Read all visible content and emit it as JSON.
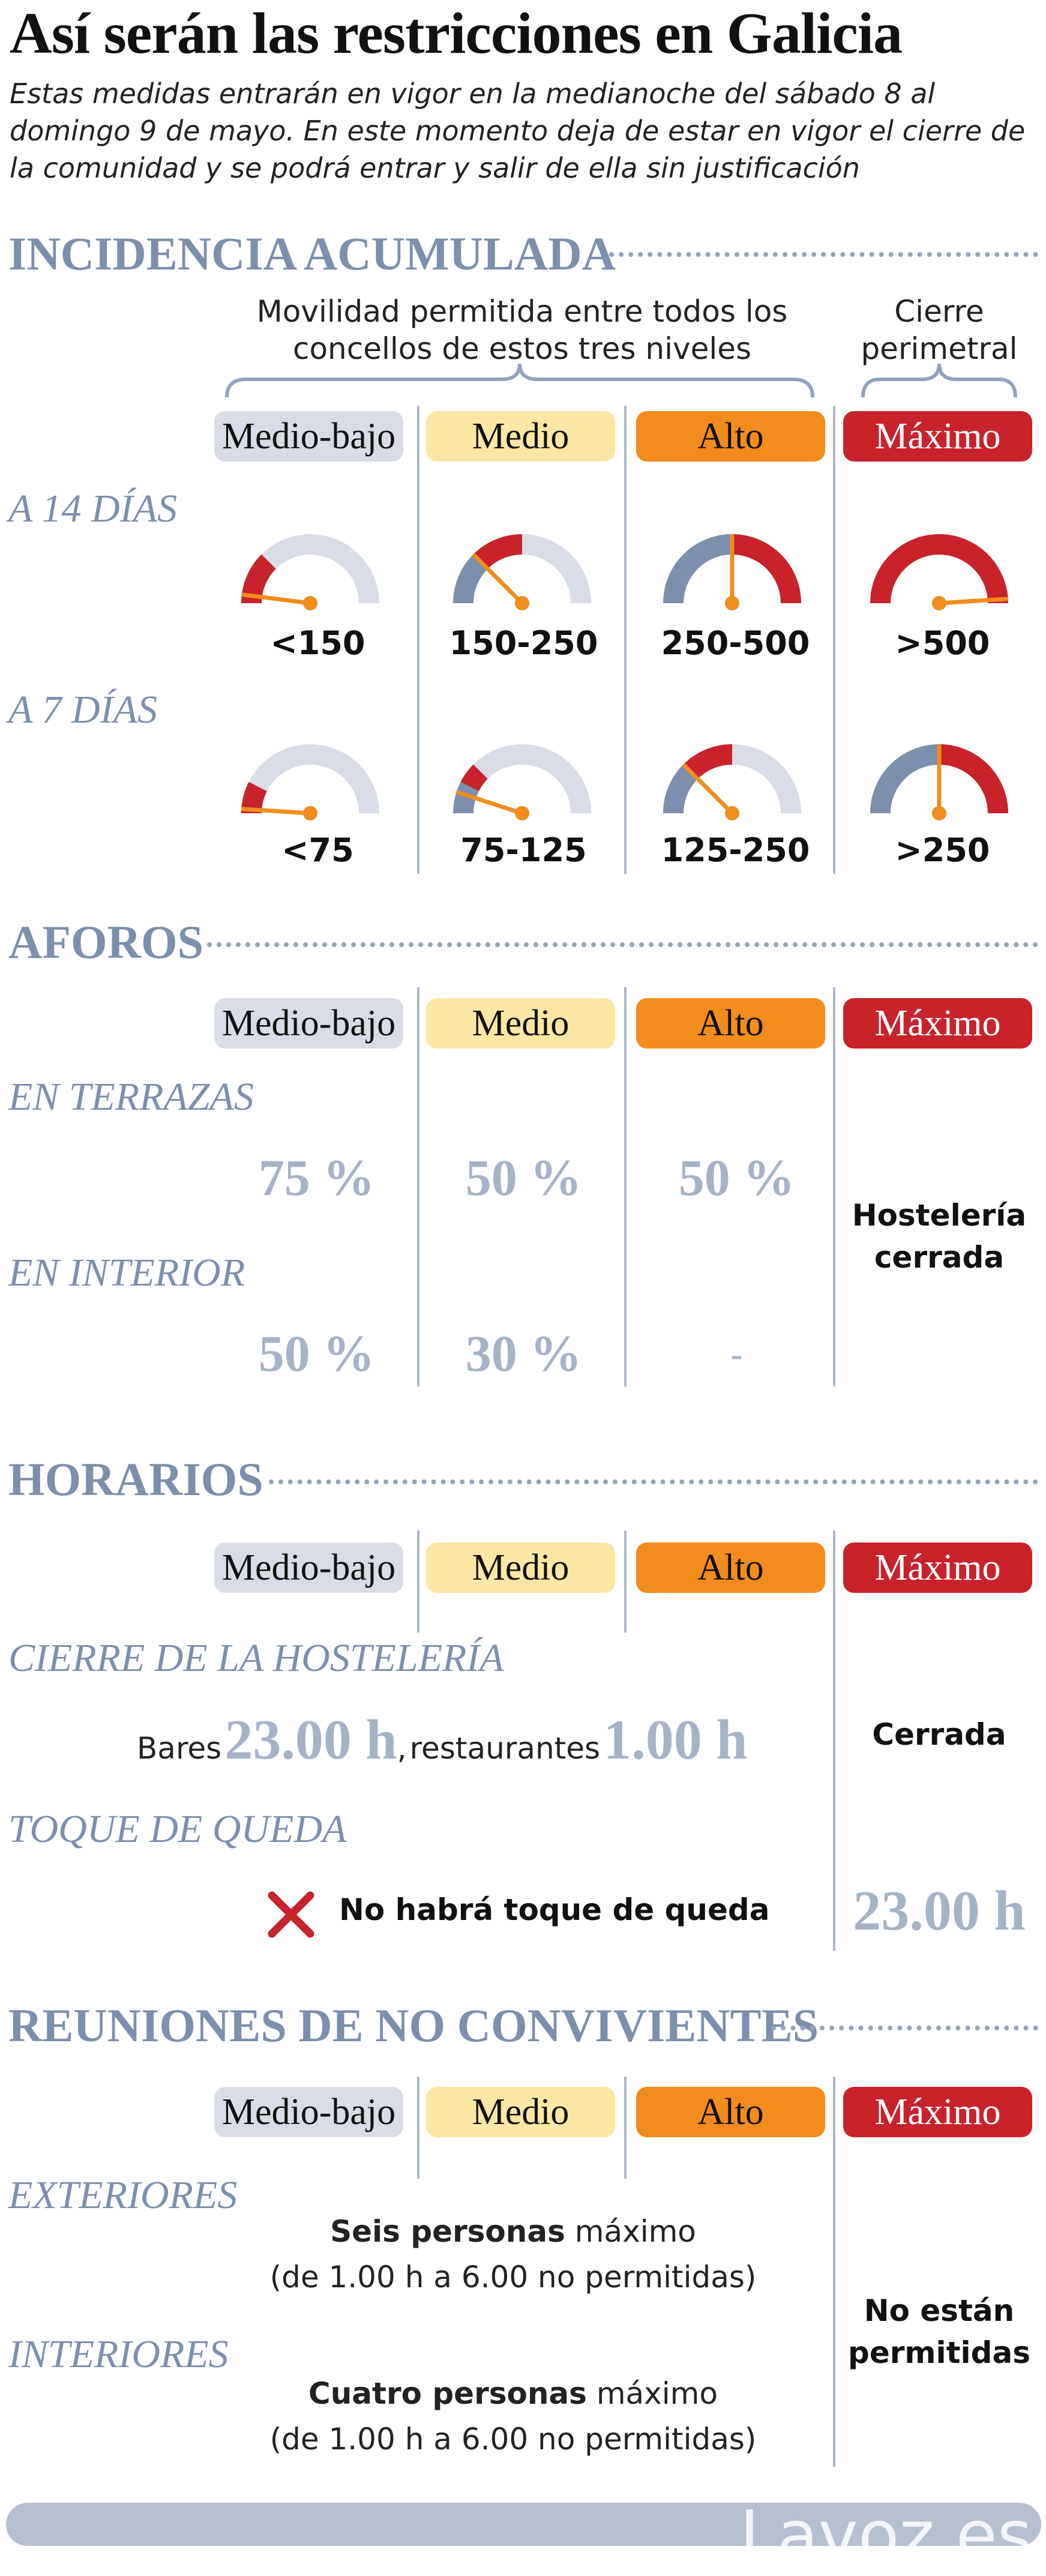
{
  "title": "Así serán las restricciones en Galicia",
  "intro": "Estas medidas entrarán en vigor en la medianoche del sábado 8 al domingo 9 de mayo. En este momento deja de estar en vigor el cierre de la comunidad y se podrá entrar y salir de ella sin justificación",
  "levels": [
    "Medio-bajo",
    "Medio",
    "Alto",
    "Máximo"
  ],
  "colors": {
    "medio_bajo": "#d8dce6",
    "medio": "#fbe7a4",
    "alto": "#f28c1c",
    "maximo": "#c8222a",
    "section": "#7c8fac",
    "gauge_track": "#d8dce6",
    "gauge_grey": "#7c8fac",
    "gauge_red": "#c8222a",
    "needle": "#f28c1c"
  },
  "incidencia": {
    "heading": "INCIDENCIA ACUMULADA",
    "mobility_note": "Movilidad permitida entre todos los concellos de estos tres niveles",
    "cierre_note": "Cierre perimetral",
    "row_14": "A 14 DÍAS",
    "row_7": "A 7 DÍAS",
    "labels_14": [
      "<150",
      "150-250",
      "250-500",
      ">500"
    ],
    "labels_7": [
      "<75",
      "75-125",
      "125-250",
      ">250"
    ],
    "gauges_14": [
      {
        "grey": 0,
        "red": 0.25,
        "needle": 0.04
      },
      {
        "grey": 0.25,
        "red": 0.25,
        "needle": 0.25
      },
      {
        "grey": 0.5,
        "red": 0.5,
        "needle": 0.5
      },
      {
        "grey": 0,
        "red": 1,
        "needle": 0.98
      }
    ],
    "gauges_7": [
      {
        "grey": 0,
        "red": 0.15,
        "needle": 0.02
      },
      {
        "grey": 0.15,
        "red": 0.1,
        "needle": 0.1
      },
      {
        "grey": 0.25,
        "red": 0.25,
        "needle": 0.25
      },
      {
        "grey": 0.5,
        "red": 0.5,
        "needle": 0.5
      }
    ]
  },
  "aforos": {
    "heading": "AFOROS",
    "row_terrazas": "EN TERRAZAS",
    "row_interior": "EN INTERIOR",
    "terrazas": [
      "75 %",
      "50 %",
      "50 %"
    ],
    "interior": [
      "50 %",
      "30 %",
      "-"
    ],
    "maximo_note": "Hostelería cerrada"
  },
  "horarios": {
    "heading": "HORARIOS",
    "row_cierre": "CIERRE DE LA HOSTELERÍA",
    "bares_label": "Bares",
    "bares_time": "23.00 h",
    "separator": ",",
    "restaurantes_label": "restaurantes",
    "restaurantes_time": "1.00 h",
    "maximo_cierre": "Cerrada",
    "row_toque": "TOQUE DE QUEDA",
    "no_toque": "No habrá toque de queda",
    "maximo_toque": "23.00 h"
  },
  "reuniones": {
    "heading": "REUNIONES DE NO CONVIVIENTES",
    "row_exteriores": "EXTERIORES",
    "exteriores_bold": "Seis personas",
    "exteriores_rest": " máximo",
    "exteriores_sub": "(de 1.00 h a 6.00 no permitidas)",
    "row_interiores": "INTERIORES",
    "interiores_bold": "Cuatro personas",
    "interiores_rest": " máximo",
    "interiores_sub": "(de 1.00 h a 6.00 no permitidas)",
    "maximo_note": "No están permitidas"
  },
  "footer": {
    "brand": "Lavoz.es"
  }
}
